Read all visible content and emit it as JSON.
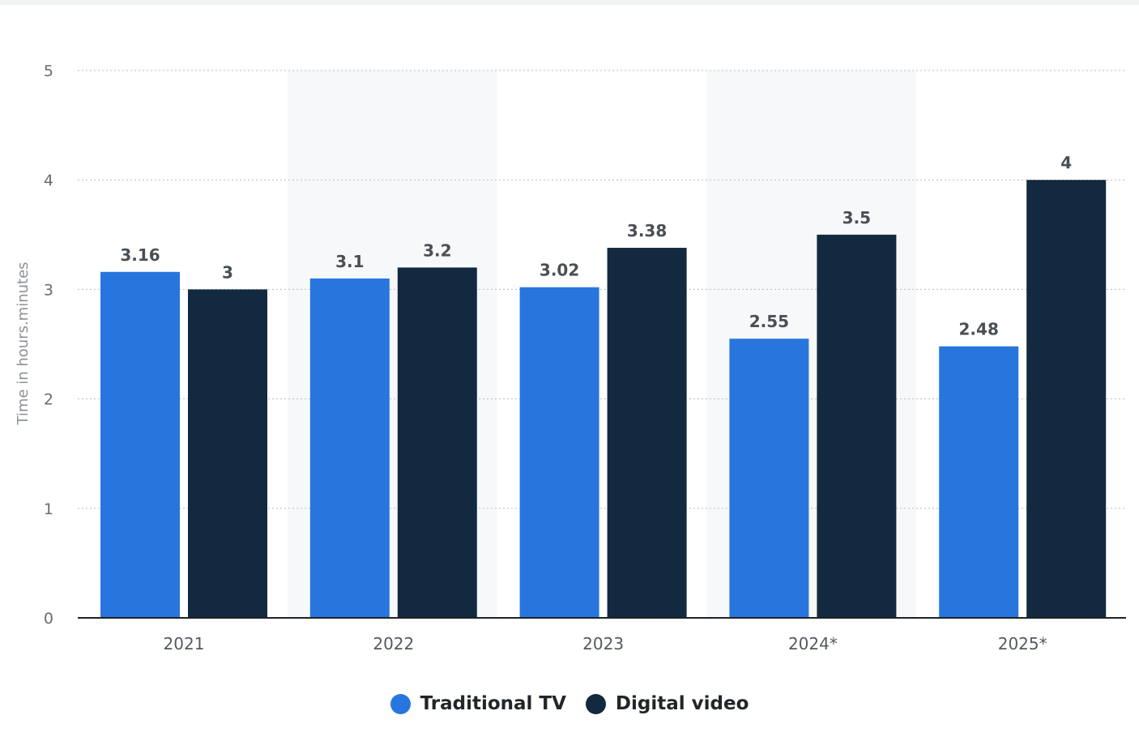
{
  "chart_data": {
    "type": "bar",
    "categories": [
      "2021",
      "2022",
      "2023",
      "2024*",
      "2025*"
    ],
    "series": [
      {
        "name": "Traditional TV",
        "values": [
          3.16,
          3.1,
          3.02,
          2.55,
          2.48
        ],
        "labels": [
          "3.16",
          "3.1",
          "3.02",
          "2.55",
          "2.48"
        ],
        "color": "#2876dd"
      },
      {
        "name": "Digital video",
        "values": [
          3,
          3.2,
          3.38,
          3.5,
          4
        ],
        "labels": [
          "3",
          "3.2",
          "3.38",
          "3.5",
          "4"
        ],
        "color": "#13293f"
      }
    ],
    "title": "",
    "xlabel": "",
    "ylabel": "Time in hours.minutes",
    "ylim": [
      0,
      5
    ],
    "yticks": [
      "0",
      "1",
      "2",
      "3",
      "4",
      "5"
    ],
    "grid": true,
    "legend": "bottom-center",
    "band_color": "#f7f8f9",
    "axis_color": "#1f2327",
    "grid_color": "#b8bcc0"
  }
}
